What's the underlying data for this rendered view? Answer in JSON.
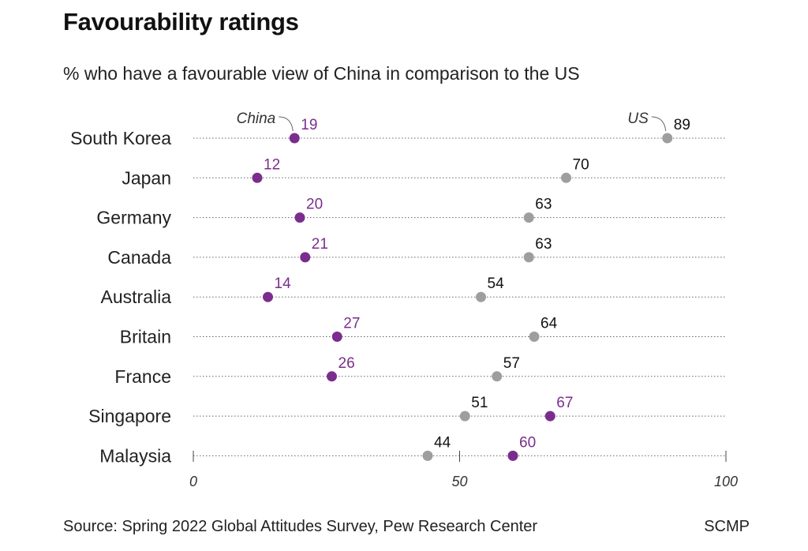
{
  "chart_data": {
    "type": "dot-plot",
    "title": "Favourability ratings",
    "subtitle": "% who have a favourable view of China in comparison to the US",
    "categories": [
      "South Korea",
      "Japan",
      "Germany",
      "Canada",
      "Australia",
      "Britain",
      "France",
      "Singapore",
      "Malaysia"
    ],
    "series": [
      {
        "name": "China",
        "color": "#7b2d8e",
        "values": [
          19,
          12,
          20,
          21,
          14,
          27,
          26,
          67,
          60
        ]
      },
      {
        "name": "US",
        "color": "#9e9e9e",
        "values": [
          89,
          70,
          63,
          63,
          54,
          64,
          57,
          51,
          44
        ]
      }
    ],
    "xlim": [
      0,
      100
    ],
    "xticks": [
      "0",
      "50",
      "100"
    ],
    "grid": "dotted",
    "source": "Source: Spring 2022 Global Attitudes Survey, Pew Research Center",
    "brand": "SCMP"
  }
}
